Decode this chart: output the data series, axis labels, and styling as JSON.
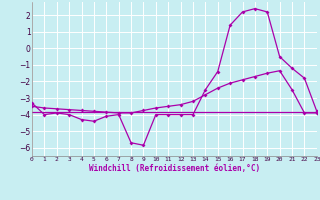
{
  "xlabel": "Windchill (Refroidissement éolien,°C)",
  "bg_color": "#c8eef2",
  "grid_color": "#ffffff",
  "line_color": "#aa00aa",
  "xlim": [
    0,
    23
  ],
  "ylim": [
    -6.5,
    2.8
  ],
  "yticks": [
    -6,
    -5,
    -4,
    -3,
    -2,
    -1,
    0,
    1,
    2
  ],
  "xticks": [
    0,
    1,
    2,
    3,
    4,
    5,
    6,
    7,
    8,
    9,
    10,
    11,
    12,
    13,
    14,
    15,
    16,
    17,
    18,
    19,
    20,
    21,
    22,
    23
  ],
  "series1_x": [
    0,
    1,
    2,
    3,
    4,
    5,
    6,
    7,
    8,
    9,
    10,
    11,
    12,
    13,
    14,
    15,
    16,
    17,
    18,
    19,
    20,
    21,
    22,
    23
  ],
  "series1_y": [
    -3.3,
    -4.0,
    -3.9,
    -4.0,
    -4.3,
    -4.4,
    -4.1,
    -4.0,
    -5.7,
    -5.85,
    -4.0,
    -4.0,
    -4.0,
    -4.0,
    -2.5,
    -1.4,
    1.4,
    2.2,
    2.4,
    2.2,
    -0.5,
    -1.2,
    -1.8,
    -3.8
  ],
  "series2_x": [
    0,
    1,
    2,
    3,
    4,
    5,
    6,
    7,
    8,
    9,
    10,
    11,
    12,
    13,
    14,
    15,
    16,
    17,
    18,
    19,
    20,
    21,
    22,
    23
  ],
  "series2_y": [
    -3.5,
    -3.6,
    -3.65,
    -3.7,
    -3.75,
    -3.8,
    -3.85,
    -3.9,
    -3.9,
    -3.75,
    -3.6,
    -3.5,
    -3.4,
    -3.2,
    -2.8,
    -2.4,
    -2.1,
    -1.9,
    -1.7,
    -1.5,
    -1.35,
    -2.5,
    -3.9,
    -3.9
  ],
  "series3_x": [
    0,
    9,
    19,
    23
  ],
  "series3_y": [
    -3.85,
    -3.85,
    -3.85,
    -3.85
  ]
}
